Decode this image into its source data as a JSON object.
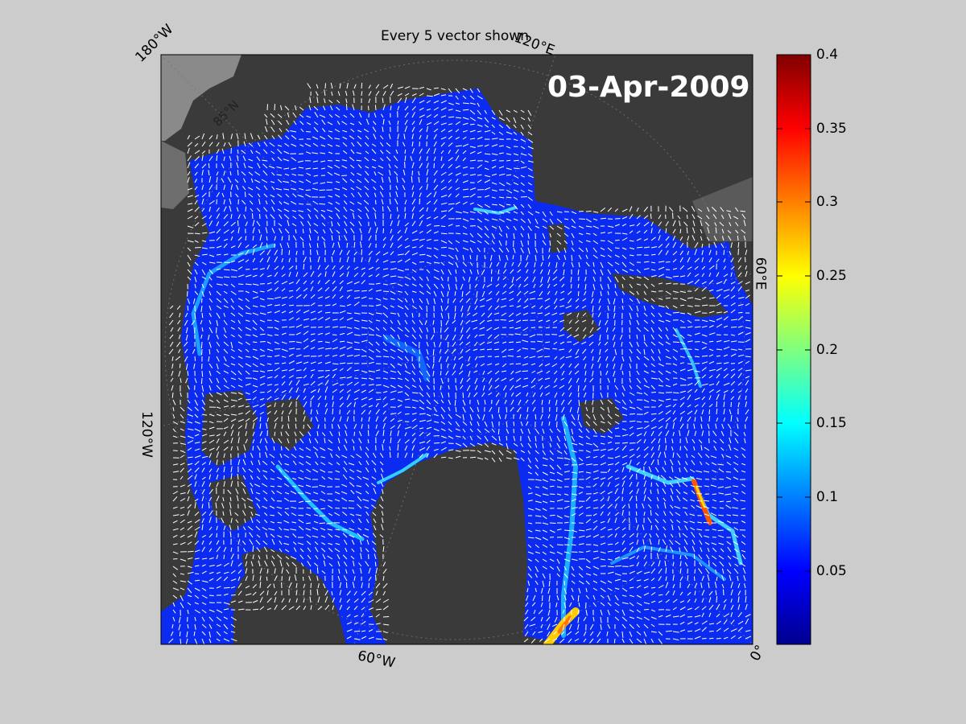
{
  "title": "Every 5 vector shown",
  "date": "03-Apr-2009",
  "lon_labels": {
    "w180": "180°W",
    "e120": "120°E",
    "e60": "60°E",
    "w120": "120°W",
    "w60": "60°W",
    "zero": "0°"
  },
  "lat_label": "85°N",
  "colorbar": {
    "colormap": "jet",
    "min": 0,
    "max": 0.4,
    "ticks": [
      "0.05",
      "0.1",
      "0.15",
      "0.2",
      "0.25",
      "0.3",
      "0.35",
      "0.4"
    ]
  },
  "colors": {
    "figure_background": "#cccccc",
    "land": "#3a3a3a",
    "unmapped_land": "#888888",
    "ice_low": "#0022ee",
    "vector": "#ffffff"
  }
}
